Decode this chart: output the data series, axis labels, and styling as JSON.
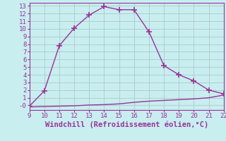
{
  "x_upper": [
    9,
    10,
    11,
    12,
    13,
    14,
    15,
    16,
    17,
    18,
    19,
    20,
    21,
    22
  ],
  "y_upper": [
    -0.1,
    1.9,
    7.8,
    10.1,
    11.8,
    12.9,
    12.5,
    12.5,
    9.6,
    5.2,
    4.0,
    3.2,
    2.0,
    1.5
  ],
  "x_lower": [
    9,
    10,
    11,
    12,
    13,
    14,
    15,
    16,
    17,
    18,
    19,
    20,
    21,
    22
  ],
  "y_lower": [
    -0.2,
    -0.15,
    -0.1,
    -0.05,
    0.05,
    0.1,
    0.2,
    0.4,
    0.55,
    0.65,
    0.75,
    0.85,
    1.0,
    1.35
  ],
  "line_color": "#993399",
  "marker": "+",
  "marker_size": 6,
  "bg_color": "#c8eef0",
  "grid_color": "#b0c8c8",
  "xlabel": "Windchill (Refroidissement éolien,°C)",
  "xlim": [
    9,
    22
  ],
  "ylim": [
    -0.6,
    13.4
  ],
  "yticks": [
    0,
    1,
    2,
    3,
    4,
    5,
    6,
    7,
    8,
    9,
    10,
    11,
    12,
    13
  ],
  "ytick_labels": [
    "-0",
    "1",
    "2",
    "3",
    "4",
    "5",
    "6",
    "7",
    "8",
    "9",
    "10",
    "11",
    "12",
    "13"
  ],
  "xticks": [
    9,
    10,
    11,
    12,
    13,
    14,
    15,
    16,
    17,
    18,
    19,
    20,
    21,
    22
  ],
  "tick_color": "#993399",
  "tick_fontsize": 6.5,
  "xlabel_fontsize": 7.5,
  "line_width": 1.0,
  "marker_color": "#993399"
}
